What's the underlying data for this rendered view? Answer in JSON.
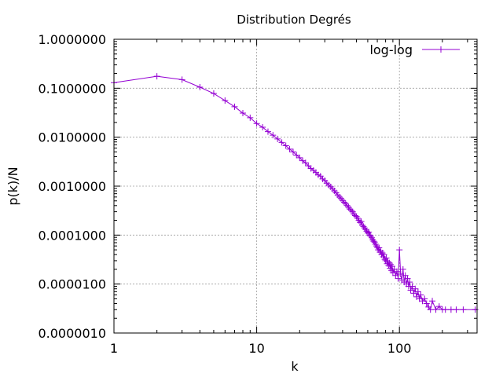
{
  "chart_data": {
    "type": "line",
    "title": "Distribution Degrés",
    "xlabel": "k",
    "ylabel": "p(k)/N",
    "x_scale": "log",
    "y_scale": "log",
    "xlim": [
      1,
      350
    ],
    "ylim": [
      1e-06,
      1
    ],
    "grid": true,
    "legend_position": "top-right",
    "x_ticks": [
      {
        "value": 1,
        "label": "1"
      },
      {
        "value": 10,
        "label": "10"
      },
      {
        "value": 100,
        "label": "100"
      }
    ],
    "y_ticks": [
      {
        "value": 1e-06,
        "label": "0.0000010"
      },
      {
        "value": 1e-05,
        "label": "0.0000100"
      },
      {
        "value": 0.0001,
        "label": "0.0001000"
      },
      {
        "value": 0.001,
        "label": "0.0010000"
      },
      {
        "value": 0.01,
        "label": "0.0100000"
      },
      {
        "value": 0.1,
        "label": "0.1000000"
      },
      {
        "value": 1,
        "label": "1.0000000"
      }
    ],
    "colors": {
      "series": "#9400d3",
      "grid": "#a0a0a0",
      "axis": "#000000"
    },
    "series": [
      {
        "name": "log-log",
        "x": [
          1,
          2,
          3,
          4,
          5,
          6,
          7,
          8,
          9,
          10,
          11,
          12,
          13,
          14,
          15,
          16,
          17,
          18,
          19,
          20,
          21,
          22,
          23,
          24,
          25,
          26,
          27,
          28,
          29,
          30,
          31,
          32,
          33,
          34,
          35,
          36,
          37,
          38,
          39,
          40,
          41,
          42,
          43,
          44,
          45,
          46,
          47,
          48,
          49,
          50,
          51,
          52,
          53,
          54,
          55,
          56,
          57,
          58,
          59,
          60,
          61,
          62,
          63,
          64,
          65,
          66,
          67,
          68,
          69,
          70,
          71,
          72,
          73,
          74,
          75,
          76,
          77,
          78,
          79,
          80,
          81,
          82,
          83,
          84,
          85,
          86,
          87,
          88,
          89,
          90,
          92,
          94,
          96,
          98,
          100,
          102,
          104,
          106,
          108,
          110,
          112,
          114,
          116,
          118,
          120,
          123,
          126,
          129,
          132,
          135,
          138,
          141,
          145,
          150,
          155,
          160,
          165,
          170,
          180,
          190,
          200,
          210,
          230,
          250,
          280,
          340
        ],
        "y": [
          0.13,
          0.175,
          0.15,
          0.105,
          0.078,
          0.056,
          0.042,
          0.031,
          0.025,
          0.019,
          0.016,
          0.013,
          0.011,
          0.0092,
          0.0078,
          0.0067,
          0.0057,
          0.005,
          0.0043,
          0.0038,
          0.0033,
          0.003,
          0.0026,
          0.0023,
          0.0021,
          0.0019,
          0.0017,
          0.0016,
          0.0014,
          0.0013,
          0.00115,
          0.00105,
          0.00097,
          0.00088,
          0.0008,
          0.00073,
          0.00066,
          0.0006,
          0.00056,
          0.00051,
          0.00047,
          0.00044,
          0.0004,
          0.00037,
          0.00034,
          0.00032,
          0.0003,
          0.00027,
          0.00025,
          0.00024,
          0.00022,
          0.0002,
          0.00018,
          0.00019,
          0.00016,
          0.00015,
          0.00014,
          0.00013,
          0.00012,
          0.00011,
          0.000115,
          0.0001,
          9.5e-05,
          8.8e-05,
          8e-05,
          7.5e-05,
          7.2e-05,
          6.5e-05,
          6e-05,
          5.6e-05,
          5e-05,
          5.5e-05,
          4.5e-05,
          4.8e-05,
          4e-05,
          4.3e-05,
          3.6e-05,
          4e-05,
          3.2e-05,
          3e-05,
          3.4e-05,
          2.6e-05,
          2.9e-05,
          2.4e-05,
          2.7e-05,
          2.1e-05,
          2.5e-05,
          1.9e-05,
          2.3e-05,
          1.7e-05,
          2e-05,
          1.5e-05,
          1.8e-05,
          1.3e-05,
          5e-05,
          1.6e-05,
          1.2e-05,
          2e-05,
          1.1e-05,
          1.5e-05,
          1e-05,
          1.3e-05,
          9e-06,
          1.1e-05,
          7.5e-06,
          9e-06,
          6.5e-06,
          8e-06,
          5.5e-06,
          7e-06,
          5e-06,
          6e-06,
          4.5e-06,
          5e-06,
          4e-06,
          3.4e-06,
          3e-06,
          4.5e-06,
          3e-06,
          3.5e-06,
          3e-06,
          3e-06,
          3e-06,
          3e-06,
          3e-06,
          3e-06
        ]
      }
    ]
  }
}
